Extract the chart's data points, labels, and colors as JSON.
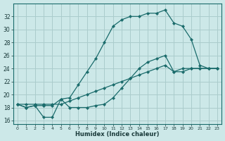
{
  "xlabel": "Humidex (Indice chaleur)",
  "bg_color": "#cce8e8",
  "line_color": "#1a6b6b",
  "grid_color": "#aacccc",
  "x_values": [
    0,
    1,
    2,
    3,
    4,
    5,
    6,
    7,
    8,
    9,
    10,
    11,
    12,
    13,
    14,
    15,
    16,
    17,
    18,
    19,
    20,
    21,
    22,
    23
  ],
  "line_straight": [
    18.5,
    18.5,
    18.5,
    18.5,
    18.5,
    18.5,
    19.0,
    19.5,
    20.0,
    20.5,
    21.0,
    21.5,
    22.0,
    22.5,
    23.0,
    23.5,
    24.0,
    24.5,
    23.5,
    23.5,
    24.0,
    24.0,
    24.0,
    24.0
  ],
  "line_dip": [
    18.5,
    18.0,
    18.3,
    16.5,
    16.5,
    19.3,
    18.0,
    18.0,
    18.0,
    18.3,
    18.5,
    19.5,
    21.0,
    22.5,
    24.0,
    25.0,
    25.5,
    26.0,
    23.5,
    24.0,
    24.0,
    24.0,
    24.0,
    24.0
  ],
  "line_peak": [
    18.5,
    18.0,
    18.3,
    18.3,
    18.3,
    19.3,
    19.5,
    21.5,
    23.5,
    25.5,
    28.0,
    30.5,
    31.5,
    32.0,
    32.0,
    32.5,
    32.5,
    33.0,
    31.0,
    30.5,
    28.5,
    24.5,
    24.0,
    24.0
  ],
  "ylim": [
    15.5,
    34.0
  ],
  "xlim": [
    -0.5,
    23.5
  ],
  "yticks": [
    16,
    18,
    20,
    22,
    24,
    26,
    28,
    30,
    32
  ],
  "xticks": [
    0,
    1,
    2,
    3,
    4,
    5,
    6,
    7,
    8,
    9,
    10,
    11,
    12,
    13,
    14,
    15,
    16,
    17,
    18,
    19,
    20,
    21,
    22,
    23
  ]
}
